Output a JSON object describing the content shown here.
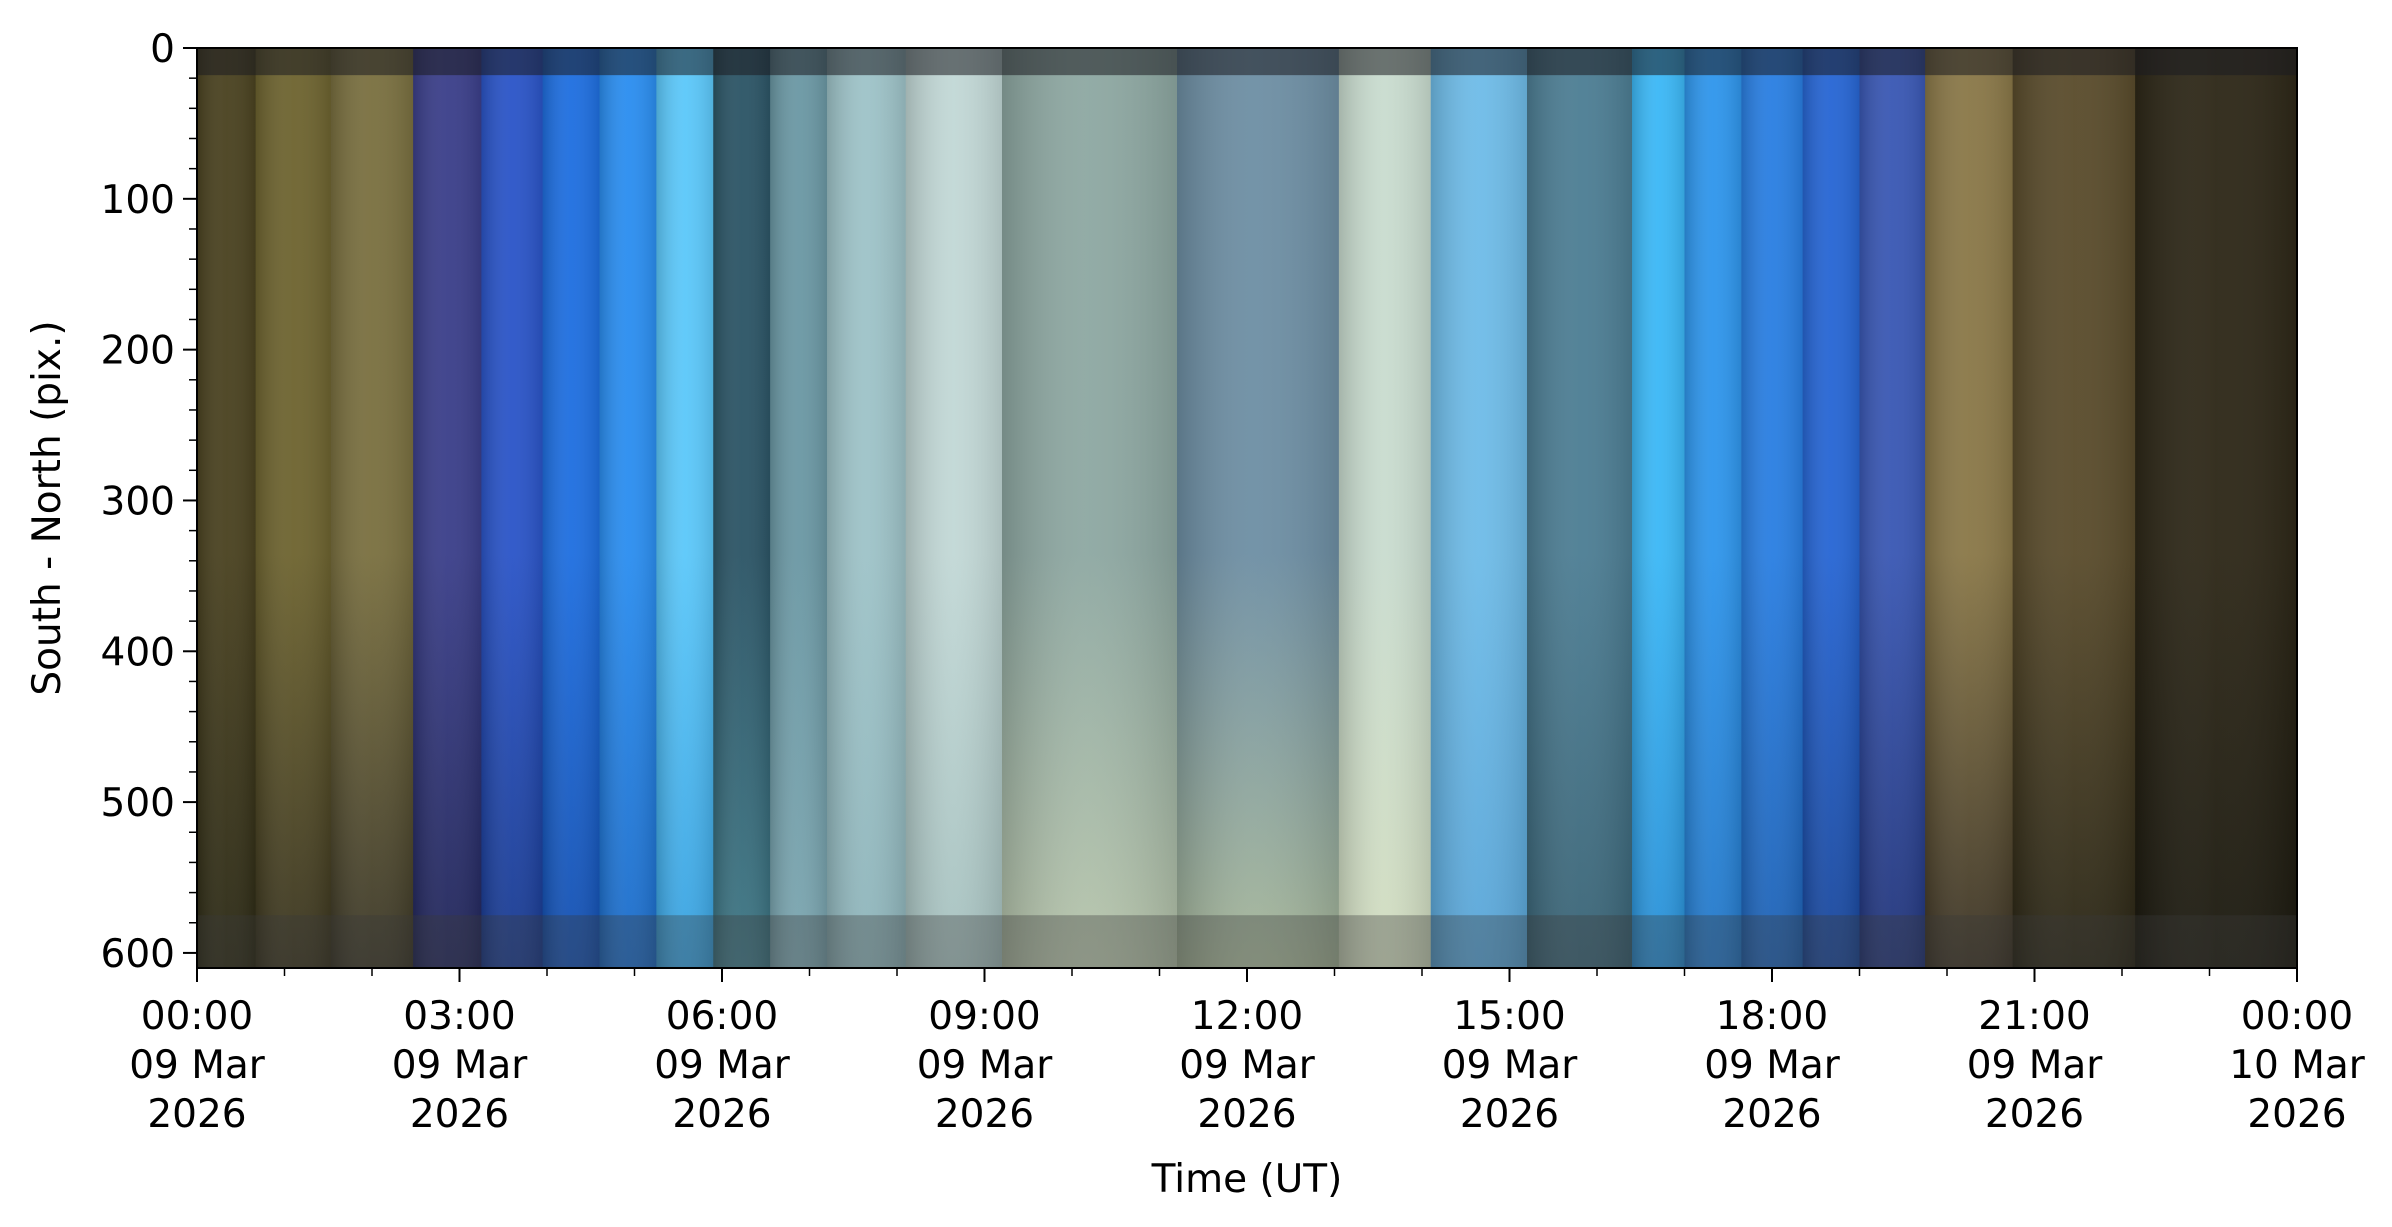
{
  "chart_data": {
    "type": "heatmap",
    "title": "",
    "xlabel": "Time (UT)",
    "ylabel": "South - North (pix.)",
    "x_range": [
      "2026-03-09 00:00",
      "2026-03-10 00:00"
    ],
    "ylim": [
      0,
      610
    ],
    "y_inverted": true,
    "grid": false,
    "x_ticks": [
      {
        "line1": "00:00",
        "line2": "09 Mar",
        "line3": "2026"
      },
      {
        "line1": "03:00",
        "line2": "09 Mar",
        "line3": "2026"
      },
      {
        "line1": "06:00",
        "line2": "09 Mar",
        "line3": "2026"
      },
      {
        "line1": "09:00",
        "line2": "09 Mar",
        "line3": "2026"
      },
      {
        "line1": "12:00",
        "line2": "09 Mar",
        "line3": "2026"
      },
      {
        "line1": "15:00",
        "line2": "09 Mar",
        "line3": "2026"
      },
      {
        "line1": "18:00",
        "line2": "09 Mar",
        "line3": "2026"
      },
      {
        "line1": "21:00",
        "line2": "09 Mar",
        "line3": "2026"
      },
      {
        "line1": "00:00",
        "line2": "10 Mar",
        "line3": "2026"
      }
    ],
    "y_ticks": [
      "0",
      "100",
      "200",
      "300",
      "400",
      "500",
      "600"
    ],
    "y_tick_values": [
      0,
      100,
      200,
      300,
      400,
      500,
      600
    ],
    "time_blocks": [
      {
        "start_h": 0.0,
        "end_h": 0.67,
        "top": "#4a4220",
        "bottom": "#2c2a16"
      },
      {
        "start_h": 0.67,
        "end_h": 1.53,
        "top": "#6e6430",
        "bottom": "#3a3520"
      },
      {
        "start_h": 1.53,
        "end_h": 2.47,
        "top": "#7a7040",
        "bottom": "#3c3828"
      },
      {
        "start_h": 2.47,
        "end_h": 3.25,
        "top": "#3b3f8a",
        "bottom": "#22275a"
      },
      {
        "start_h": 3.25,
        "end_h": 3.95,
        "top": "#2b55c8",
        "bottom": "#1a3b8f"
      },
      {
        "start_h": 3.95,
        "end_h": 4.6,
        "top": "#1f6fe0",
        "bottom": "#1550b0"
      },
      {
        "start_h": 4.6,
        "end_h": 5.25,
        "top": "#2b8ef0",
        "bottom": "#1d6cc8"
      },
      {
        "start_h": 5.25,
        "end_h": 5.9,
        "top": "#5cc8fa",
        "bottom": "#3aa2e0"
      },
      {
        "start_h": 5.9,
        "end_h": 6.55,
        "top": "#2c5566",
        "bottom": "#3f7886"
      },
      {
        "start_h": 6.55,
        "end_h": 7.2,
        "top": "#6b98a4",
        "bottom": "#7ca6b0"
      },
      {
        "start_h": 7.2,
        "end_h": 8.1,
        "top": "#9ec3c8",
        "bottom": "#8fb5bb"
      },
      {
        "start_h": 8.1,
        "end_h": 9.2,
        "top": "#c2d8d6",
        "bottom": "#a7c2c0"
      },
      {
        "start_h": 9.2,
        "end_h": 11.2,
        "top": "#8ea8a2",
        "bottom": "#b8c6ac"
      },
      {
        "start_h": 11.2,
        "end_h": 13.05,
        "top": "#6e8fa4",
        "bottom": "#a8b89a"
      },
      {
        "start_h": 13.05,
        "end_h": 14.1,
        "top": "#c9dccf",
        "bottom": "#d2ddc0"
      },
      {
        "start_h": 14.1,
        "end_h": 15.2,
        "top": "#6fbce8",
        "bottom": "#5aa6d8"
      },
      {
        "start_h": 15.2,
        "end_h": 16.4,
        "top": "#4d7e94",
        "bottom": "#3a6476"
      },
      {
        "start_h": 16.4,
        "end_h": 17.0,
        "top": "#3cb8f6",
        "bottom": "#2a8fd6"
      },
      {
        "start_h": 17.0,
        "end_h": 17.65,
        "top": "#2f96ec",
        "bottom": "#2578c8"
      },
      {
        "start_h": 17.65,
        "end_h": 18.35,
        "top": "#2a7fe2",
        "bottom": "#1f62b4"
      },
      {
        "start_h": 18.35,
        "end_h": 19.0,
        "top": "#2766d4",
        "bottom": "#1a479a"
      },
      {
        "start_h": 19.0,
        "end_h": 19.75,
        "top": "#3a58b4",
        "bottom": "#22357a"
      },
      {
        "start_h": 19.75,
        "end_h": 20.75,
        "top": "#8a7848",
        "bottom": "#3c3426"
      },
      {
        "start_h": 20.75,
        "end_h": 22.15,
        "top": "#5a4c2c",
        "bottom": "#2a2616"
      },
      {
        "start_h": 22.15,
        "end_h": 24.0,
        "top": "#2e2818",
        "bottom": "#1c1a10"
      }
    ],
    "colors": {
      "axis": "#000000",
      "top_band": "#1b1b20",
      "bottom_band": "#3a3a3a"
    }
  }
}
